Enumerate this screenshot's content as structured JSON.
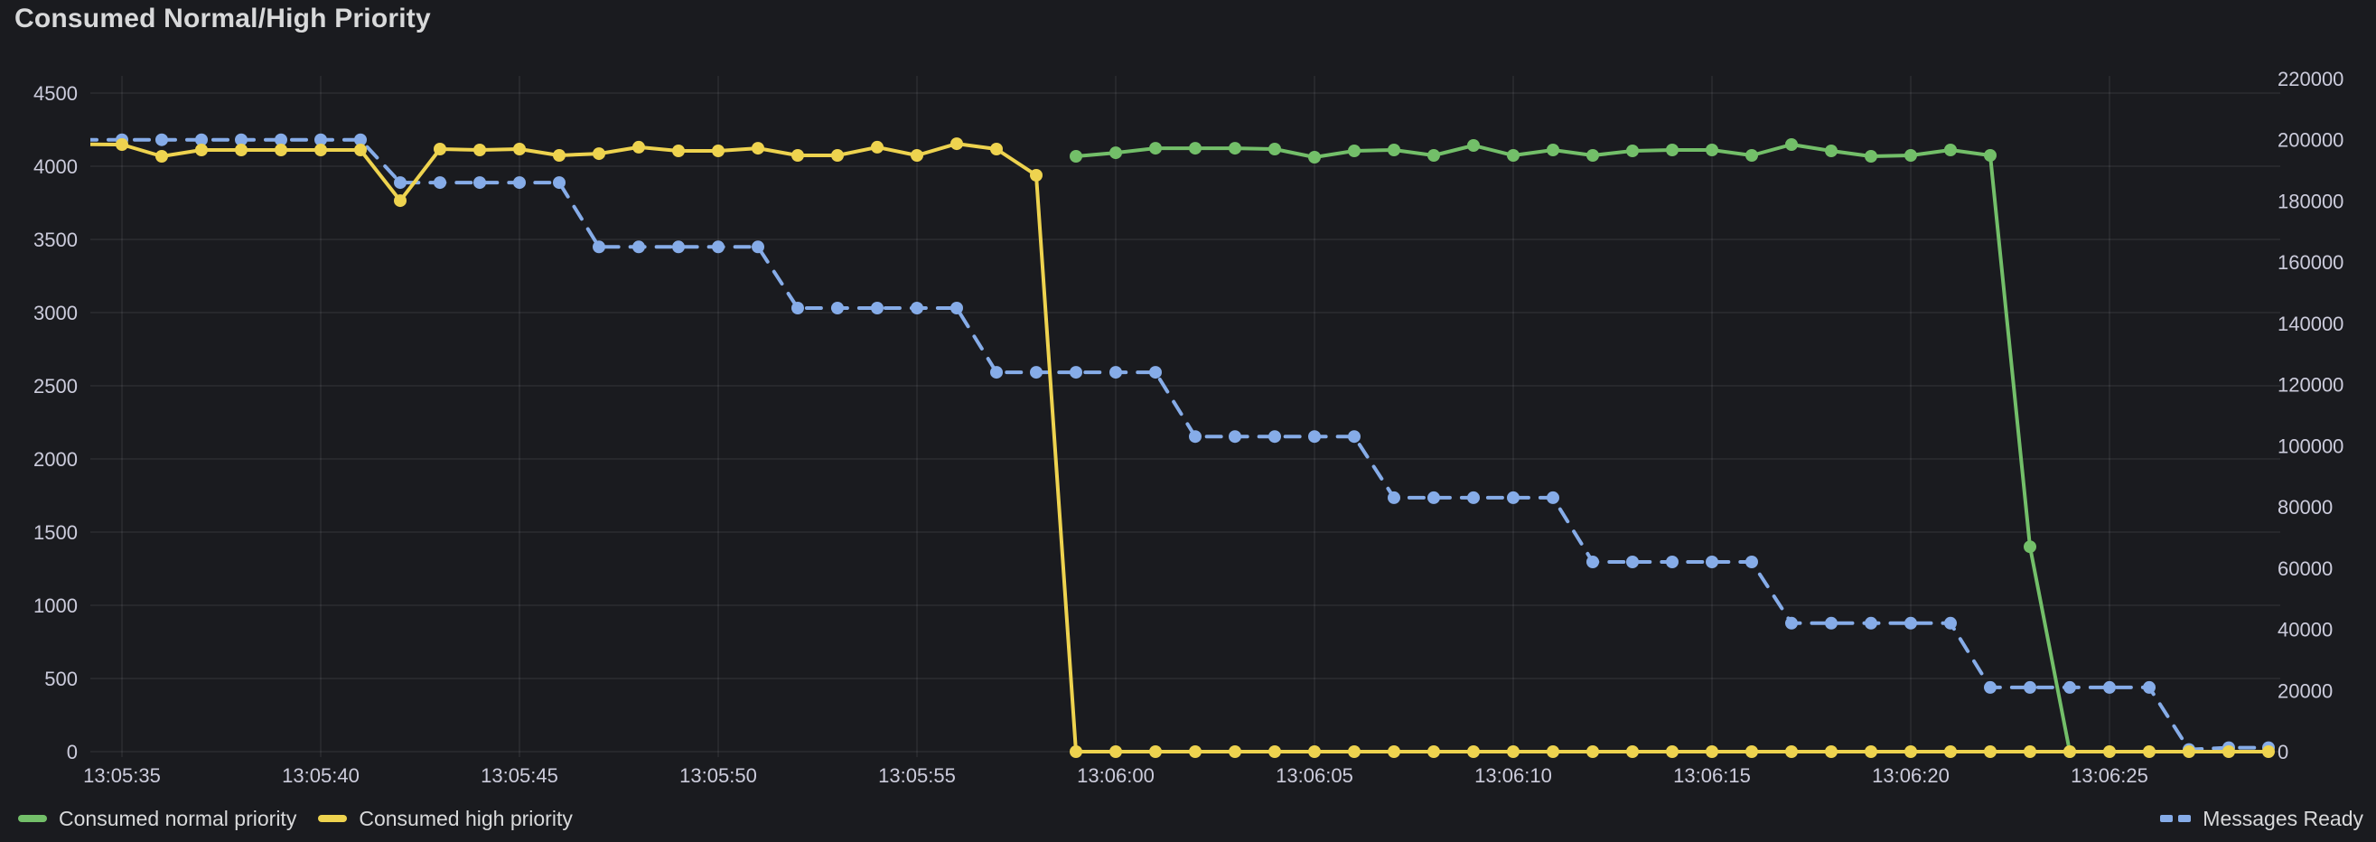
{
  "panel": {
    "title": "Consumed Normal/High Priority"
  },
  "colors": {
    "background": "#1a1b1f",
    "text": "#ccccdc",
    "title_text": "#d8d9da",
    "grid": "rgba(204,204,220,0.10)",
    "green": "#73bf69",
    "yellow": "#eed34f",
    "blue": "#86ace8"
  },
  "legend": {
    "left_items": [
      {
        "label": "Consumed normal priority",
        "color": "#73bf69",
        "style": "solid"
      },
      {
        "label": "Consumed high priority",
        "color": "#eed34f",
        "style": "solid"
      }
    ],
    "right_items": [
      {
        "label": "Messages Ready",
        "color": "#86ace8",
        "style": "dashed"
      }
    ]
  },
  "chart_data": {
    "type": "line",
    "title": "Consumed Normal/High Priority",
    "x_axis": {
      "start_time": "13:05:35",
      "tick_interval_seconds": 5,
      "tick_labels": [
        "13:05:35",
        "13:05:40",
        "13:05:45",
        "13:05:50",
        "13:05:55",
        "13:06:00",
        "13:06:05",
        "13:06:10",
        "13:06:15",
        "13:06:20",
        "13:06:25"
      ]
    },
    "y_axis_left": {
      "range": [
        0,
        4500
      ],
      "ticks": [
        0,
        500,
        1000,
        1500,
        2000,
        2500,
        3000,
        3500,
        4000,
        4500
      ]
    },
    "y_axis_right": {
      "range": [
        0,
        220000
      ],
      "ticks": [
        0,
        20000,
        40000,
        60000,
        80000,
        100000,
        120000,
        140000,
        160000,
        180000,
        200000,
        220000
      ]
    },
    "grid": true,
    "legend_position": "bottom",
    "series": [
      {
        "name": "Consumed normal priority",
        "axis": "left",
        "color": "#73bf69",
        "style": "solid",
        "draw_order": 1,
        "points": [
          [
            24,
            4068
          ],
          [
            25,
            4092
          ],
          [
            26,
            4123
          ],
          [
            27,
            4123
          ],
          [
            28,
            4123
          ],
          [
            29,
            4117
          ],
          [
            30,
            4062
          ],
          [
            31,
            4105
          ],
          [
            32,
            4111
          ],
          [
            33,
            4074
          ],
          [
            34,
            4142
          ],
          [
            35,
            4074
          ],
          [
            36,
            4111
          ],
          [
            37,
            4074
          ],
          [
            38,
            4105
          ],
          [
            39,
            4111
          ],
          [
            40,
            4111
          ],
          [
            41,
            4074
          ],
          [
            42,
            4148
          ],
          [
            43,
            4105
          ],
          [
            44,
            4068
          ],
          [
            45,
            4074
          ],
          [
            46,
            4111
          ],
          [
            47,
            4074
          ],
          [
            48,
            1400
          ],
          [
            49,
            0
          ]
        ]
      },
      {
        "name": "Consumed high priority",
        "axis": "left",
        "color": "#eed34f",
        "style": "solid",
        "draw_order": 2,
        "points": [
          [
            -1,
            4150
          ],
          [
            0,
            4148
          ],
          [
            1,
            4068
          ],
          [
            2,
            4111
          ],
          [
            3,
            4111
          ],
          [
            4,
            4111
          ],
          [
            5,
            4111
          ],
          [
            6,
            4111
          ],
          [
            7,
            3765
          ],
          [
            8,
            4117
          ],
          [
            9,
            4111
          ],
          [
            10,
            4117
          ],
          [
            11,
            4074
          ],
          [
            12,
            4086
          ],
          [
            13,
            4130
          ],
          [
            14,
            4105
          ],
          [
            15,
            4105
          ],
          [
            16,
            4123
          ],
          [
            17,
            4074
          ],
          [
            18,
            4074
          ],
          [
            19,
            4130
          ],
          [
            20,
            4074
          ],
          [
            21,
            4154
          ],
          [
            22,
            4117
          ],
          [
            23,
            3938
          ],
          [
            24,
            0
          ],
          [
            25,
            0
          ],
          [
            26,
            0
          ],
          [
            27,
            0
          ],
          [
            28,
            0
          ],
          [
            29,
            0
          ],
          [
            30,
            0
          ],
          [
            31,
            0
          ],
          [
            32,
            0
          ],
          [
            33,
            0
          ],
          [
            34,
            0
          ],
          [
            35,
            0
          ],
          [
            36,
            0
          ],
          [
            37,
            0
          ],
          [
            38,
            0
          ],
          [
            39,
            0
          ],
          [
            40,
            0
          ],
          [
            41,
            0
          ],
          [
            42,
            0
          ],
          [
            43,
            0
          ],
          [
            44,
            0
          ],
          [
            45,
            0
          ],
          [
            46,
            0
          ],
          [
            47,
            0
          ],
          [
            48,
            0
          ],
          [
            49,
            0
          ],
          [
            50,
            0
          ],
          [
            51,
            0
          ],
          [
            52,
            0
          ],
          [
            53,
            0
          ],
          [
            54,
            0
          ]
        ]
      },
      {
        "name": "Messages Ready",
        "axis": "right",
        "color": "#86ace8",
        "style": "dashed",
        "draw_order": 0,
        "points": [
          [
            -1,
            200000
          ],
          [
            0,
            200000
          ],
          [
            1,
            200000
          ],
          [
            2,
            200000
          ],
          [
            3,
            200000
          ],
          [
            4,
            200000
          ],
          [
            5,
            200000
          ],
          [
            6,
            200000
          ],
          [
            7,
            186000
          ],
          [
            8,
            186000
          ],
          [
            9,
            186000
          ],
          [
            10,
            186000
          ],
          [
            11,
            186000
          ],
          [
            12,
            165000
          ],
          [
            13,
            165000
          ],
          [
            14,
            165000
          ],
          [
            15,
            165000
          ],
          [
            16,
            165000
          ],
          [
            17,
            145000
          ],
          [
            18,
            145000
          ],
          [
            19,
            145000
          ],
          [
            20,
            145000
          ],
          [
            21,
            145000
          ],
          [
            22,
            124000
          ],
          [
            23,
            124000
          ],
          [
            24,
            124000
          ],
          [
            25,
            124000
          ],
          [
            26,
            124000
          ],
          [
            27,
            103000
          ],
          [
            28,
            103000
          ],
          [
            29,
            103000
          ],
          [
            30,
            103000
          ],
          [
            31,
            103000
          ],
          [
            32,
            83000
          ],
          [
            33,
            83000
          ],
          [
            34,
            83000
          ],
          [
            35,
            83000
          ],
          [
            36,
            83000
          ],
          [
            37,
            62000
          ],
          [
            38,
            62000
          ],
          [
            39,
            62000
          ],
          [
            40,
            62000
          ],
          [
            41,
            62000
          ],
          [
            42,
            42000
          ],
          [
            43,
            42000
          ],
          [
            44,
            42000
          ],
          [
            45,
            42000
          ],
          [
            46,
            42000
          ],
          [
            47,
            21000
          ],
          [
            48,
            21000
          ],
          [
            49,
            21000
          ],
          [
            50,
            21000
          ],
          [
            51,
            21000
          ],
          [
            52,
            700
          ],
          [
            53,
            1300
          ],
          [
            54,
            1300
          ]
        ]
      }
    ]
  }
}
